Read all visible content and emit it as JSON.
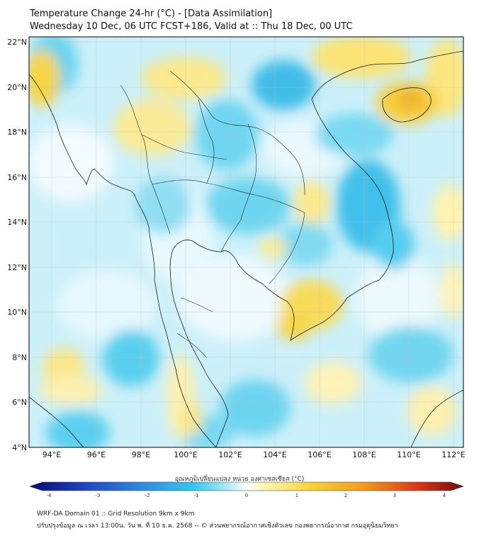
{
  "header": {
    "title": "Temperature Change 24-hr (°C) - [Data Assimilation]",
    "subtitle": "Wednesday 10 Dec, 06 UTC FCST+186, Valid at :: Thu 18 Dec, 00 UTC"
  },
  "map": {
    "lat_labels": [
      "22°N",
      "20°N",
      "18°N",
      "16°N",
      "14°N",
      "12°N",
      "10°N",
      "8°N",
      "6°N",
      "4°N"
    ],
    "lon_labels": [
      "94°E",
      "96°E",
      "98°E",
      "100°E",
      "102°E",
      "104°E",
      "106°E",
      "108°E",
      "110°E",
      "112°E"
    ],
    "lat_range": [
      4,
      22.2
    ],
    "lon_range": [
      93.0,
      112.5
    ]
  },
  "colorbar": {
    "label": "อุณหภูมิเปลี่ยนแปลง หน่วย องศาเซลเซียส (°C)",
    "ticks": [
      "-4",
      "-3",
      "-2",
      "-1",
      "0",
      "1",
      "2",
      "3",
      "4"
    ],
    "range": [
      -4,
      4
    ],
    "colors": [
      "#0a0a6e",
      "#1f3fbf",
      "#2f8be0",
      "#38c8ee",
      "#b4ecf5",
      "#ffffff",
      "#fff3a6",
      "#f3d23c",
      "#f39a1e",
      "#d5341a",
      "#6e0a0a"
    ]
  },
  "footer": {
    "line1": "WRF-DA Domain 01 :: Grid Resolution 9km x 9km",
    "line2": "ปรับปรุงข้อมูล ณ เวลา 13:00น. วัน พ. ที่ 10 ธ.ค. 2568 -- © ส่วนพยากรณ์อากาศเชิงตัวเลข กองพยากรณ์อากาศ กรมอุตุนิยมวิทยา"
  }
}
